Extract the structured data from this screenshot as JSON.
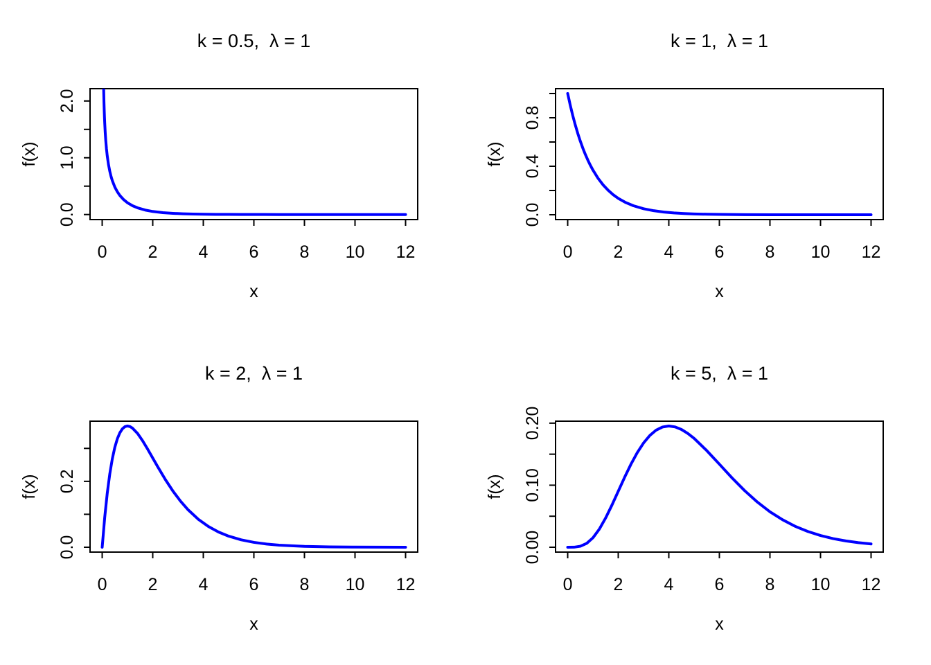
{
  "figure": {
    "background": "#ffffff",
    "text_color": "#000000",
    "curve_color": "#0000ff"
  },
  "chart_data": [
    {
      "type": "line",
      "title": "k = 0.5,  λ = 1",
      "xlabel": "x",
      "ylabel": "f(x)",
      "line_color": "#0000ff",
      "grid": false,
      "legend": "none",
      "xlim": [
        -0.48,
        12.48
      ],
      "ylim": [
        -0.089,
        2.217
      ],
      "x_ticks": [
        0,
        2,
        4,
        6,
        8,
        10,
        12
      ],
      "x_tick_labels": [
        "0",
        "2",
        "4",
        "6",
        "8",
        "10",
        "12"
      ],
      "y_ticks": [
        0,
        0.5,
        1,
        1.5,
        2
      ],
      "y_tick_labels": [
        "0.0",
        "",
        "1.0",
        "",
        "2.0"
      ],
      "x": [
        0.055,
        0.06,
        0.07,
        0.08,
        0.09,
        0.1,
        0.12,
        0.14,
        0.17,
        0.2,
        0.25,
        0.3,
        0.35,
        0.4,
        0.5,
        0.6,
        0.7,
        0.85,
        1,
        1.2,
        1.4,
        1.7,
        2,
        2.4,
        2.8,
        3.2,
        3.6,
        4,
        4.5,
        5,
        5.5,
        6,
        7,
        8,
        9,
        10,
        11,
        12
      ],
      "y": [
        2.277,
        2.169,
        1.988,
        1.842,
        1.719,
        1.614,
        1.445,
        1.311,
        1.155,
        1.033,
        0.879,
        0.763,
        0.672,
        0.598,
        0.484,
        0.4,
        0.335,
        0.262,
        0.208,
        0.155,
        0.118,
        0.079,
        0.054,
        0.033,
        0.021,
        0.013,
        0.008,
        0.005,
        0.003,
        0.002,
        0.001,
        0.0006,
        0.0002,
        0.0001,
        2e-05,
        1e-05,
        0,
        0
      ]
    },
    {
      "type": "line",
      "title": "k = 1,  λ = 1",
      "xlabel": "x",
      "ylabel": "f(x)",
      "line_color": "#0000ff",
      "grid": false,
      "legend": "none",
      "xlim": [
        -0.48,
        12.48
      ],
      "ylim": [
        -0.04,
        1.04
      ],
      "x_ticks": [
        0,
        2,
        4,
        6,
        8,
        10,
        12
      ],
      "x_tick_labels": [
        "0",
        "2",
        "4",
        "6",
        "8",
        "10",
        "12"
      ],
      "y_ticks": [
        0,
        0.2,
        0.4,
        0.6,
        0.8,
        1
      ],
      "y_tick_labels": [
        "0.0",
        "",
        "0.4",
        "",
        "0.8",
        ""
      ],
      "x": [
        0,
        0.1,
        0.2,
        0.3,
        0.4,
        0.5,
        0.6,
        0.7,
        0.8,
        0.9,
        1,
        1.2,
        1.4,
        1.6,
        1.8,
        2,
        2.3,
        2.6,
        3,
        3.4,
        3.8,
        4.2,
        4.6,
        5,
        5.5,
        6,
        7,
        8,
        9,
        10,
        11,
        12
      ],
      "y": [
        1,
        0.9048,
        0.8187,
        0.7408,
        0.6703,
        0.6065,
        0.5488,
        0.4966,
        0.4493,
        0.4066,
        0.3679,
        0.3012,
        0.2466,
        0.2019,
        0.1653,
        0.1353,
        0.1003,
        0.0743,
        0.0498,
        0.0334,
        0.0224,
        0.015,
        0.0101,
        0.0067,
        0.0041,
        0.0025,
        0.0009,
        0.0003,
        0.0001,
        5e-05,
        2e-05,
        1e-05
      ]
    },
    {
      "type": "line",
      "title": "k = 2,  λ = 1",
      "xlabel": "x",
      "ylabel": "f(x)",
      "line_color": "#0000ff",
      "grid": false,
      "legend": "none",
      "xlim": [
        -0.48,
        12.48
      ],
      "ylim": [
        -0.0147,
        0.3826
      ],
      "x_ticks": [
        0,
        2,
        4,
        6,
        8,
        10,
        12
      ],
      "x_tick_labels": [
        "0",
        "2",
        "4",
        "6",
        "8",
        "10",
        "12"
      ],
      "y_ticks": [
        0,
        0.1,
        0.2,
        0.3
      ],
      "y_tick_labels": [
        "0.0",
        "",
        "0.2",
        ""
      ],
      "x": [
        0,
        0.1,
        0.2,
        0.3,
        0.4,
        0.5,
        0.6,
        0.7,
        0.8,
        0.9,
        1,
        1.1,
        1.2,
        1.4,
        1.6,
        1.8,
        2,
        2.2,
        2.5,
        2.8,
        3.1,
        3.4,
        3.8,
        4.2,
        4.6,
        5,
        5.5,
        6,
        6.5,
        7,
        8,
        9,
        10,
        11,
        12
      ],
      "y": [
        0,
        0.0905,
        0.1637,
        0.2222,
        0.2681,
        0.3033,
        0.3293,
        0.3476,
        0.3595,
        0.3659,
        0.3679,
        0.3662,
        0.3614,
        0.3452,
        0.323,
        0.2975,
        0.2707,
        0.2438,
        0.2052,
        0.1703,
        0.1397,
        0.1135,
        0.085,
        0.063,
        0.0462,
        0.0337,
        0.0225,
        0.0149,
        0.0097,
        0.0064,
        0.0027,
        0.0011,
        0.0005,
        0.0002,
        0.0001
      ]
    },
    {
      "type": "line",
      "title": "k = 5,  λ = 1",
      "xlabel": "x",
      "ylabel": "f(x)",
      "line_color": "#0000ff",
      "grid": false,
      "legend": "none",
      "xlim": [
        -0.48,
        12.48
      ],
      "ylim": [
        -0.0078,
        0.2032
      ],
      "x_ticks": [
        0,
        2,
        4,
        6,
        8,
        10,
        12
      ],
      "x_tick_labels": [
        "0",
        "2",
        "4",
        "6",
        "8",
        "10",
        "12"
      ],
      "y_ticks": [
        0,
        0.05,
        0.1,
        0.15,
        0.2
      ],
      "y_tick_labels": [
        "0.00",
        "",
        "0.10",
        "",
        "0.20"
      ],
      "x": [
        0,
        0.25,
        0.5,
        0.75,
        1,
        1.25,
        1.5,
        1.75,
        2,
        2.25,
        2.5,
        2.75,
        3,
        3.25,
        3.5,
        3.75,
        4,
        4.25,
        4.5,
        4.75,
        5,
        5.5,
        6,
        6.5,
        7,
        7.5,
        8,
        8.5,
        9,
        9.5,
        10,
        10.5,
        11,
        11.5,
        12
      ],
      "y": [
        0,
        0.0001,
        0.0016,
        0.0062,
        0.0153,
        0.0291,
        0.0471,
        0.0679,
        0.0902,
        0.1126,
        0.1336,
        0.1523,
        0.168,
        0.1802,
        0.1888,
        0.1938,
        0.1954,
        0.1939,
        0.1898,
        0.1835,
        0.1755,
        0.1558,
        0.1339,
        0.1118,
        0.0912,
        0.0729,
        0.0572,
        0.0443,
        0.0337,
        0.0254,
        0.0189,
        0.0139,
        0.0102,
        0.0074,
        0.0053
      ]
    }
  ]
}
